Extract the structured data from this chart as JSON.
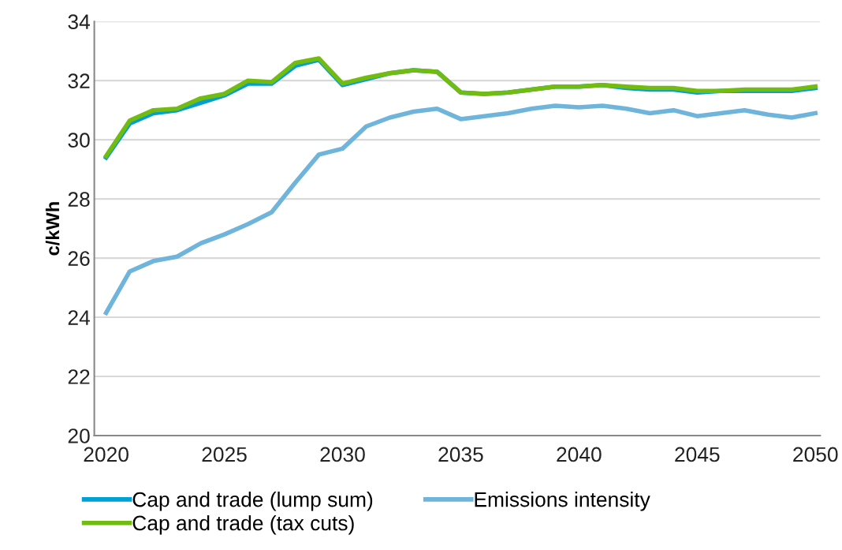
{
  "chart_data": {
    "type": "line",
    "ylabel": "c/kWh",
    "x": [
      2020,
      2021,
      2022,
      2023,
      2024,
      2025,
      2026,
      2027,
      2028,
      2029,
      2030,
      2031,
      2032,
      2033,
      2034,
      2035,
      2036,
      2037,
      2038,
      2039,
      2040,
      2041,
      2042,
      2043,
      2044,
      2045,
      2046,
      2047,
      2048,
      2049,
      2050
    ],
    "series": [
      {
        "name": "Cap and trade (lump sum)",
        "color": "#00a0d2",
        "values": [
          29.4,
          30.55,
          30.9,
          31.0,
          31.25,
          31.5,
          31.9,
          31.9,
          32.5,
          32.7,
          31.85,
          32.05,
          32.25,
          32.35,
          32.3,
          31.6,
          31.55,
          31.6,
          31.7,
          31.8,
          31.8,
          31.85,
          31.75,
          31.7,
          31.7,
          31.6,
          31.65,
          31.65,
          31.65,
          31.65,
          31.75
        ]
      },
      {
        "name": "Emissions intensity",
        "color": "#6fb4da",
        "values": [
          24.15,
          25.55,
          25.9,
          26.05,
          26.5,
          26.8,
          27.15,
          27.55,
          28.55,
          29.5,
          29.7,
          30.45,
          30.75,
          30.95,
          31.05,
          30.7,
          30.8,
          30.9,
          31.05,
          31.15,
          31.1,
          31.15,
          31.05,
          30.9,
          31.0,
          30.8,
          30.9,
          31.0,
          30.85,
          30.75,
          30.9
        ]
      },
      {
        "name": "Cap and trade (tax cuts)",
        "color": "#72bb10",
        "values": [
          29.45,
          30.65,
          31.0,
          31.05,
          31.4,
          31.55,
          32.0,
          31.95,
          32.6,
          32.75,
          31.9,
          32.1,
          32.25,
          32.35,
          32.3,
          31.6,
          31.55,
          31.6,
          31.7,
          31.8,
          31.8,
          31.85,
          31.8,
          31.75,
          31.75,
          31.65,
          31.65,
          31.7,
          31.7,
          31.7,
          31.8
        ]
      }
    ],
    "xlim": [
      2019.5,
      2050.2
    ],
    "xticks": [
      2020,
      2025,
      2030,
      2035,
      2040,
      2045,
      2050
    ],
    "ylim": [
      20,
      34
    ],
    "yticks": [
      20,
      22,
      24,
      26,
      28,
      30,
      32,
      34
    ],
    "grid": "y",
    "legend": "bottom",
    "marker": "none",
    "line_style": "solid"
  }
}
